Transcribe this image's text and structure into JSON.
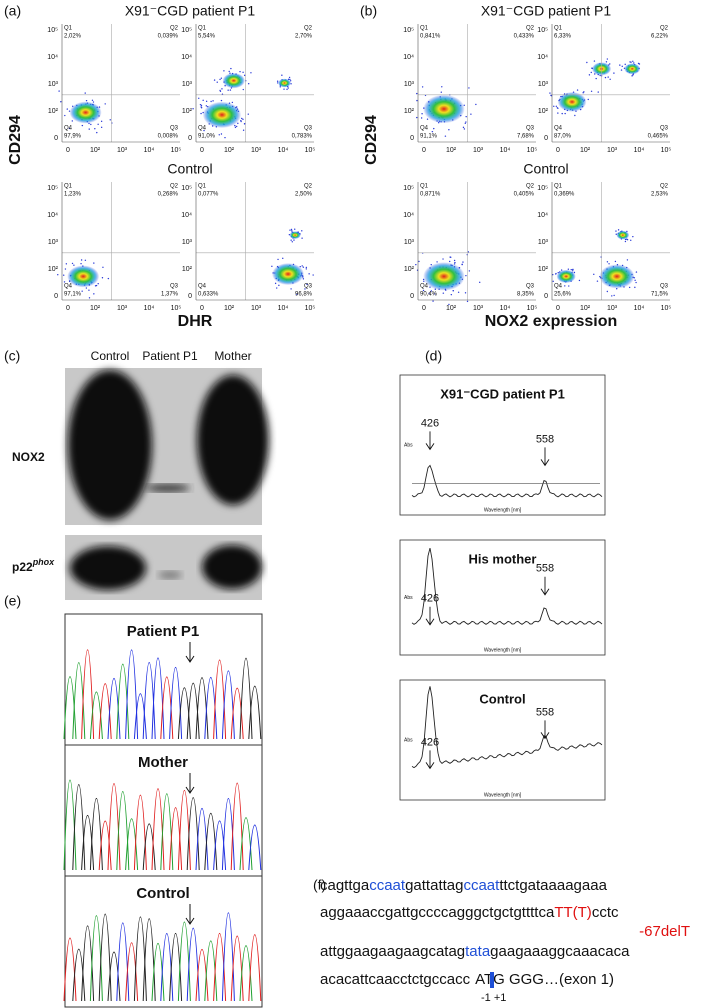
{
  "flow": [
    {
      "label": "(a)",
      "title": "X91⁻CGD patient P1",
      "subtitle": "Control",
      "y_label": "CD294",
      "x_label": "DHR",
      "plots": [
        [
          "2,02%",
          "0,039%",
          "0,008%",
          "97,9%"
        ],
        [
          "5,54%",
          "2,70%",
          "0,783%",
          "91,0%"
        ],
        [
          "1,23%",
          "0,268%",
          "1,37%",
          "97,1%"
        ],
        [
          "0,077%",
          "2,50%",
          "96,8%",
          "0,633%"
        ]
      ]
    },
    {
      "label": "(b)",
      "title": "X91⁻CGD patient P1",
      "subtitle": "Control",
      "y_label": "CD294",
      "x_label": "NOX2 expression",
      "plots": [
        [
          "0,841%",
          "0,433%",
          "7,68%",
          "91,1%"
        ],
        [
          "6,33%",
          "6,22%",
          "0,465%",
          "87,0%"
        ],
        [
          "0,871%",
          "0,405%",
          "8,35%",
          "90,4%"
        ],
        [
          "0,369%",
          "2,53%",
          "71,5%",
          "25,6%"
        ]
      ]
    }
  ],
  "quadrant_names": [
    "Q1",
    "Q2",
    "Q3",
    "Q4"
  ],
  "axis_ticks": [
    "0",
    "10²",
    "10³",
    "10⁴",
    "10⁵"
  ],
  "blot": {
    "label": "(c)",
    "lanes": [
      "Control",
      "Patient P1",
      "Mother"
    ],
    "nox2": "NOX2",
    "p22": "p22",
    "phox": "phox"
  },
  "spectra": {
    "label": "(d)",
    "y_axis": "Abs",
    "x_axis": "Wavelength [nm]",
    "plots": [
      {
        "title": "X91⁻CGD patient P1",
        "peaks": [
          "426",
          "558"
        ]
      },
      {
        "title": "His mother",
        "peaks": [
          "426",
          "558"
        ]
      },
      {
        "title": "Control",
        "peaks": [
          "426",
          "558"
        ]
      }
    ]
  },
  "chromatograms": {
    "label": "(e)",
    "titles": [
      "Patient P1",
      "Mother",
      "Control"
    ]
  },
  "sequence": {
    "label": "(f)",
    "lines": [
      [
        {
          "text": "cagttga",
          "color": "#111"
        },
        {
          "text": "ccaat",
          "color": "#1f4fd6"
        },
        {
          "text": "gattattag",
          "color": "#111"
        },
        {
          "text": "ccaat",
          "color": "#1f4fd6"
        },
        {
          "text": "ttctgataaaagaaa",
          "color": "#111"
        }
      ],
      [
        {
          "text": "aggaaaccgattgccccagggctgctgttttca",
          "color": "#111"
        },
        {
          "text": "TT(T)",
          "color": "#e01010"
        },
        {
          "text": "cctc",
          "color": "#111"
        }
      ],
      [
        {
          "text": "attggaagaagaagcatag",
          "color": "#111"
        },
        {
          "text": "tata",
          "color": "#1f4fd6"
        },
        {
          "text": "gaagaaaggcaaacaca",
          "color": "#111"
        }
      ],
      [
        {
          "text": "acacattcaacctctgccacc",
          "color": "#111"
        },
        {
          "text": "ATG GGG…(exon 1)",
          "color": "#111"
        }
      ]
    ],
    "deletion": "-67delT",
    "positions": "-1 +1"
  }
}
